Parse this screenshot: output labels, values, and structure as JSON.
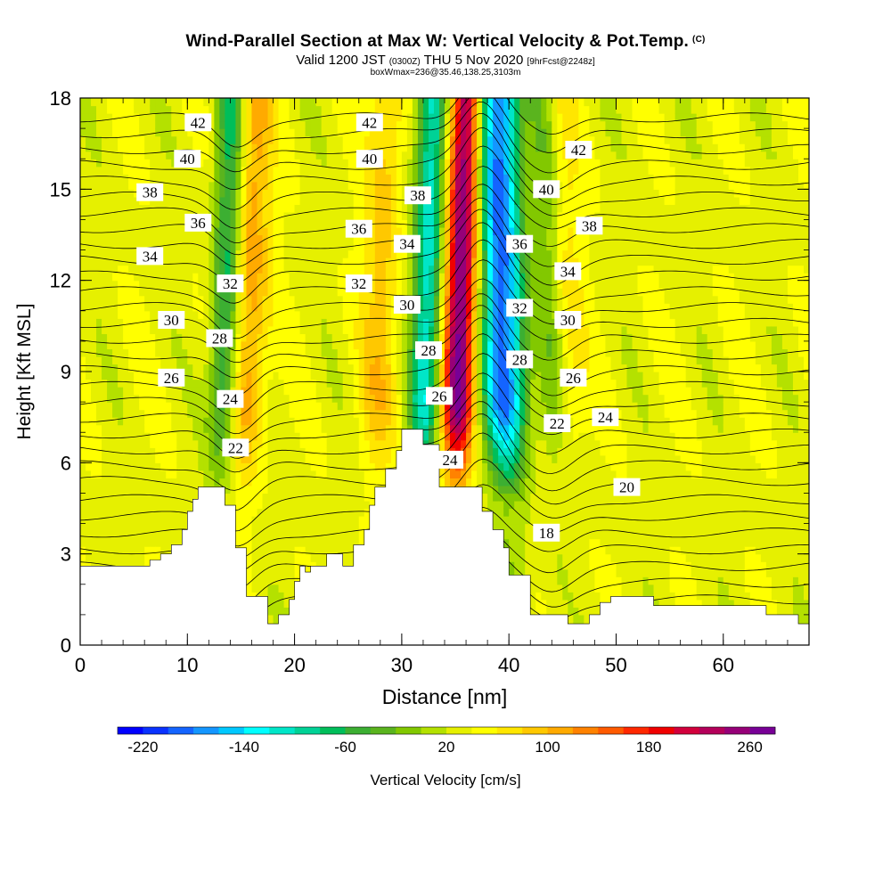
{
  "header": {
    "title": "Wind-Parallel Section at Max W: Vertical Velocity & Pot.Temp.",
    "title_mark": "(C)",
    "valid_label": "Valid 1200 JST",
    "valid_zulu": "(0300Z)",
    "valid_date": "THU 5 Nov 2020",
    "forecast_tag": "[9hrFcst@2248z]",
    "box_info": "boxWmax=236@35.46,138.25,3103m"
  },
  "chart_data": {
    "type": "heatmap",
    "title": "Wind-Parallel Section at Max W: Vertical Velocity & Pot.Temp.",
    "xlabel": "Distance [nm]",
    "ylabel": "Height [Kft MSL]",
    "xlim": [
      0,
      68
    ],
    "ylim": [
      0,
      18
    ],
    "x_ticks": [
      0,
      10,
      20,
      30,
      40,
      50,
      60
    ],
    "y_ticks": [
      0,
      3,
      6,
      9,
      12,
      15,
      18
    ],
    "x_tick_labels": [
      "0",
      "10",
      "20",
      "30",
      "40",
      "50",
      "60"
    ],
    "y_tick_labels": [
      "0",
      "3",
      "6",
      "9",
      "12",
      "15",
      "18"
    ],
    "colorbar": {
      "label": "Vertical Velocity [cm/s]",
      "min": -240,
      "max": 280,
      "step": 20,
      "tick_labels": [
        "-220",
        "-140",
        "-60",
        "20",
        "100",
        "180",
        "260"
      ],
      "tick_values": [
        -220,
        -140,
        -60,
        20,
        100,
        180,
        260
      ],
      "colors": [
        "#0000ff",
        "#0a32ff",
        "#1464ff",
        "#1496ff",
        "#00c8ff",
        "#00ffff",
        "#00e6c8",
        "#00d296",
        "#00be5a",
        "#3caf32",
        "#5ab41e",
        "#82c800",
        "#b4e100",
        "#e6f000",
        "#ffff00",
        "#ffe600",
        "#ffc800",
        "#ffaa00",
        "#ff8200",
        "#ff5a00",
        "#ff2800",
        "#f00000",
        "#d2003c",
        "#b4005a",
        "#960078",
        "#780096"
      ]
    },
    "updrafts": [
      {
        "x": 35.4,
        "peak": 236
      },
      {
        "x": 15.5,
        "peak": 90
      },
      {
        "x": 28.0,
        "peak": 55
      },
      {
        "x": 45.0,
        "peak": 50
      }
    ],
    "downdrafts": [
      {
        "x": 39.5,
        "peak": -230
      },
      {
        "x": 32.3,
        "peak": -150
      },
      {
        "x": 13.6,
        "peak": -120
      },
      {
        "x": 44.0,
        "peak": -70
      }
    ],
    "theta_contours": {
      "field": "Potential Temperature",
      "labels": [
        {
          "text": "42",
          "x": 11,
          "y": 17.2
        },
        {
          "text": "40",
          "x": 10,
          "y": 16.0
        },
        {
          "text": "38",
          "x": 6.5,
          "y": 14.9
        },
        {
          "text": "36",
          "x": 11,
          "y": 13.9
        },
        {
          "text": "34",
          "x": 6.5,
          "y": 12.8
        },
        {
          "text": "32",
          "x": 14,
          "y": 11.9
        },
        {
          "text": "30",
          "x": 8.5,
          "y": 10.7
        },
        {
          "text": "28",
          "x": 13,
          "y": 10.1
        },
        {
          "text": "26",
          "x": 8.5,
          "y": 8.8
        },
        {
          "text": "24",
          "x": 14,
          "y": 8.1
        },
        {
          "text": "22",
          "x": 14.5,
          "y": 6.5
        },
        {
          "text": "42",
          "x": 27,
          "y": 17.2
        },
        {
          "text": "40",
          "x": 27,
          "y": 16.0
        },
        {
          "text": "36",
          "x": 26,
          "y": 13.7
        },
        {
          "text": "32",
          "x": 26,
          "y": 11.9
        },
        {
          "text": "38",
          "x": 31.5,
          "y": 14.8
        },
        {
          "text": "34",
          "x": 30.5,
          "y": 13.2
        },
        {
          "text": "30",
          "x": 30.5,
          "y": 11.2
        },
        {
          "text": "28",
          "x": 32.5,
          "y": 9.7
        },
        {
          "text": "26",
          "x": 33.5,
          "y": 8.2
        },
        {
          "text": "24",
          "x": 34.5,
          "y": 6.1
        },
        {
          "text": "42",
          "x": 46.5,
          "y": 16.3
        },
        {
          "text": "40",
          "x": 43.5,
          "y": 15.0
        },
        {
          "text": "38",
          "x": 47.5,
          "y": 13.8
        },
        {
          "text": "36",
          "x": 41,
          "y": 13.2
        },
        {
          "text": "34",
          "x": 45.5,
          "y": 12.3
        },
        {
          "text": "32",
          "x": 41,
          "y": 11.1
        },
        {
          "text": "30",
          "x": 45.5,
          "y": 10.7
        },
        {
          "text": "28",
          "x": 41,
          "y": 9.4
        },
        {
          "text": "26",
          "x": 46,
          "y": 8.8
        },
        {
          "text": "24",
          "x": 49,
          "y": 7.5
        },
        {
          "text": "22",
          "x": 44.5,
          "y": 7.3
        },
        {
          "text": "20",
          "x": 51,
          "y": 5.2
        },
        {
          "text": "18",
          "x": 43.5,
          "y": 3.7
        }
      ],
      "base_levels": [
        17,
        17.5,
        18,
        18.5,
        19,
        19.5,
        20,
        21,
        22,
        23,
        24,
        25,
        26,
        27,
        28,
        29,
        30,
        31,
        32,
        33,
        34,
        35,
        36,
        37,
        38,
        39,
        40,
        41,
        42,
        43,
        44
      ]
    },
    "terrain": {
      "x": [
        0,
        6.5,
        6.5,
        7.5,
        7.5,
        8.5,
        8.5,
        9.5,
        9.5,
        10,
        10,
        10.5,
        10.5,
        11,
        11,
        13.5,
        13.5,
        14.5,
        14.5,
        15.5,
        15.5,
        17.5,
        17.5,
        18.5,
        18.5,
        19.5,
        19.5,
        20,
        20,
        20.5,
        20.5,
        21,
        21,
        21.5,
        21.5,
        23,
        23,
        24.5,
        24.5,
        25.5,
        25.5,
        26.5,
        26.5,
        27,
        27,
        27.5,
        27.5,
        28.5,
        28.5,
        29.5,
        29.5,
        30,
        30,
        32,
        32,
        33.5,
        33.5,
        37.5,
        37.5,
        38.5,
        38.5,
        39.5,
        39.5,
        40,
        40,
        42,
        42,
        45.5,
        45.5,
        47.5,
        47.5,
        48.5,
        48.5,
        49.5,
        49.5,
        53.5,
        53.5,
        64,
        64,
        67,
        67,
        68
      ],
      "y": [
        2.6,
        2.6,
        2.8,
        2.8,
        3.0,
        3.0,
        3.3,
        3.3,
        3.8,
        3.8,
        4.4,
        4.4,
        4.8,
        4.8,
        5.2,
        5.2,
        4.6,
        4.6,
        3.2,
        3.2,
        1.6,
        1.6,
        0.7,
        0.7,
        1.0,
        1.0,
        1.5,
        1.5,
        2.1,
        2.1,
        2.6,
        2.6,
        2.4,
        2.4,
        2.6,
        2.6,
        3.0,
        3.0,
        2.6,
        2.6,
        3.3,
        3.3,
        3.8,
        3.8,
        4.6,
        4.6,
        5.2,
        5.2,
        5.8,
        5.8,
        6.4,
        6.4,
        7.1,
        7.1,
        6.6,
        6.6,
        5.2,
        5.2,
        4.4,
        4.4,
        3.8,
        3.8,
        3.2,
        3.2,
        2.3,
        2.3,
        1.0,
        1.0,
        0.7,
        0.7,
        1.0,
        1.0,
        1.4,
        1.4,
        1.6,
        1.6,
        1.3,
        1.3,
        1.0,
        1.0,
        0.7,
        0.7,
        0.6
      ]
    }
  }
}
